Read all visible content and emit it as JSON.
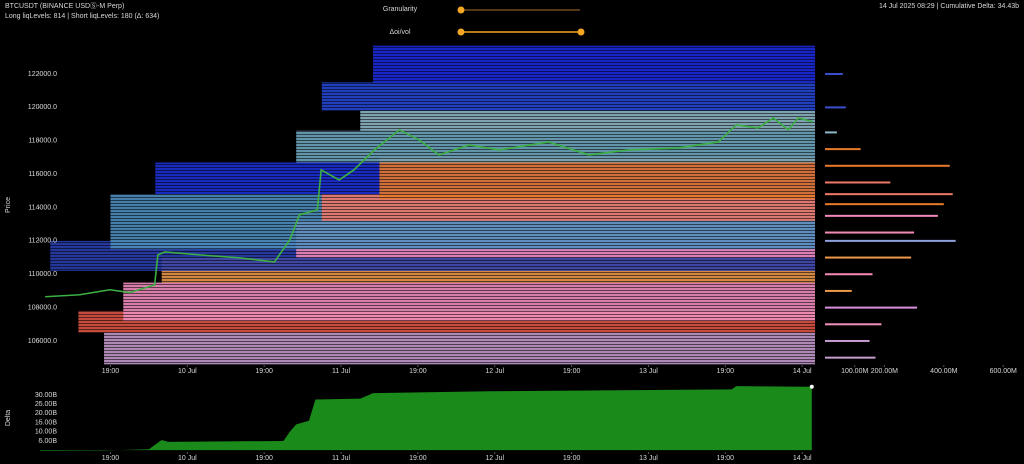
{
  "header": {
    "title": "BTCUSDT (BINANCE USDⓈ-M Perp)",
    "subtitle": "Long liqLevels: 814 | Short liqLevels: 180 (Δ: 634)",
    "status": "14 Jul 2025 08:29 | Cumulative Delta: 34.43b"
  },
  "controls": {
    "granularity": "Granularity",
    "oi_vol": "Δoi/vol"
  },
  "chart_data": [
    {
      "type": "line",
      "y_label": "Price",
      "color": "#3cb043",
      "x": [
        0.8,
        6.2,
        10.9,
        14,
        17.9,
        18.4,
        19.5,
        24.9,
        31.2,
        36.6,
        39,
        40.5,
        43.3,
        43.9,
        46.7,
        49,
        52.2,
        56.1,
        59.2,
        62.3,
        67,
        71.7,
        79.4,
        85.7,
        91.9,
        99.7,
        105.9,
        108.7,
        112.1,
        114.5,
        116.8,
        118.4,
        120.7
      ],
      "values": [
        108650,
        108770,
        109070,
        108900,
        109360,
        111160,
        111340,
        111160,
        110980,
        110740,
        112060,
        113560,
        113860,
        116250,
        115650,
        116250,
        117450,
        118650,
        118050,
        117150,
        117750,
        117450,
        117930,
        117150,
        117450,
        117570,
        117930,
        118950,
        118770,
        119370,
        118650,
        119370,
        119130
      ],
      "zones": [
        {
          "from": 104600,
          "to": 106500,
          "start": 10,
          "color": "#c79ccf"
        },
        {
          "from": 106500,
          "to": 107800,
          "start": 6,
          "color": "#e05545"
        },
        {
          "from": 107200,
          "to": 109500,
          "start": 13,
          "color": "#f490c0"
        },
        {
          "from": 109500,
          "to": 111000,
          "start": 19,
          "color": "#ee9a4a"
        },
        {
          "from": 110200,
          "to": 112000,
          "start": 1.6,
          "color": "#2b3fb0"
        },
        {
          "from": 111000,
          "to": 113200,
          "start": 40,
          "color": "#f48ab8"
        },
        {
          "from": 111500,
          "to": 114800,
          "start": 11,
          "color": "#4e8fc0"
        },
        {
          "from": 113200,
          "to": 114800,
          "start": 44,
          "color": "#f07868"
        },
        {
          "from": 114800,
          "to": 116700,
          "start": 18,
          "color": "#1d30d8"
        },
        {
          "from": 114500,
          "to": 117000,
          "start": 53,
          "color": "#e87a2a"
        },
        {
          "from": 116700,
          "to": 118600,
          "start": 40,
          "color": "#6fa9c2"
        },
        {
          "from": 118600,
          "to": 119800,
          "start": 50,
          "color": "#8fb8c8"
        },
        {
          "from": 119800,
          "to": 121500,
          "start": 44,
          "color": "#2547d6"
        },
        {
          "from": 121500,
          "to": 123700,
          "start": 52,
          "color": "#1b2be4"
        }
      ],
      "xlim": [
        0,
        121
      ],
      "ylim": [
        104560,
        123740
      ],
      "xticks": [
        {
          "value": 11,
          "label": "19:00"
        },
        {
          "value": 23,
          "label": "10 Jul"
        },
        {
          "value": 35,
          "label": "19:00"
        },
        {
          "value": 47,
          "label": "11 Jul"
        },
        {
          "value": 59,
          "label": "19:00"
        },
        {
          "value": 71,
          "label": "12 Jul"
        },
        {
          "value": 83,
          "label": "19:00"
        },
        {
          "value": 95,
          "label": "13 Jul"
        },
        {
          "value": 107,
          "label": "19:00"
        },
        {
          "value": 119,
          "label": "14 Jul"
        }
      ],
      "yticks": [
        {
          "value": 106000,
          "label": "106000.0"
        },
        {
          "value": 108000,
          "label": "108000.0"
        },
        {
          "value": 110000,
          "label": "110000.0"
        },
        {
          "value": 112000,
          "label": "112000.0"
        },
        {
          "value": 114000,
          "label": "114000.0"
        },
        {
          "value": 116000,
          "label": "116000.0"
        },
        {
          "value": 118000,
          "label": "118000.0"
        },
        {
          "value": 120000,
          "label": "120000.0"
        },
        {
          "value": 122000,
          "label": "122000.0"
        }
      ]
    },
    {
      "type": "area",
      "y_label": "Delta",
      "color": "#1a8a1a",
      "x": [
        0,
        10,
        17,
        18,
        19,
        20,
        38,
        39,
        40,
        42,
        43,
        50,
        52,
        70,
        100,
        108,
        108.7,
        120.5
      ],
      "values": [
        -0.3,
        -0.2,
        0.5,
        3,
        5.5,
        4.5,
        5,
        10,
        14,
        16,
        27.5,
        28,
        31,
        32,
        32.8,
        33,
        34.8,
        34.43
      ],
      "xlim": [
        0,
        121
      ],
      "ylim": [
        -1,
        35.4
      ],
      "xticks": [
        {
          "value": 11,
          "label": "19:00"
        },
        {
          "value": 23,
          "label": "10 Jul"
        },
        {
          "value": 35,
          "label": "19:00"
        },
        {
          "value": 47,
          "label": "11 Jul"
        },
        {
          "value": 59,
          "label": "19:00"
        },
        {
          "value": 71,
          "label": "12 Jul"
        },
        {
          "value": 83,
          "label": "19:00"
        },
        {
          "value": 95,
          "label": "13 Jul"
        },
        {
          "value": 107,
          "label": "19:00"
        },
        {
          "value": 119,
          "label": "14 Jul"
        }
      ],
      "yticks": [
        {
          "value": 5,
          "label": "5.00B"
        },
        {
          "value": 10,
          "label": "10.00B"
        },
        {
          "value": 15,
          "label": "15.00B"
        },
        {
          "value": 20,
          "label": "20.00B"
        },
        {
          "value": 25,
          "label": "25.00B"
        },
        {
          "value": 30,
          "label": "30.00B"
        }
      ]
    },
    {
      "type": "hbar",
      "prices": [
        122000,
        120000,
        118500,
        117500,
        116500,
        115500,
        114800,
        114200,
        113500,
        112500,
        112000,
        111000,
        110000,
        109000,
        108000,
        107000,
        106000,
        105000
      ],
      "values": [
        60000000,
        70000000,
        40000000,
        120000000,
        420000000,
        220000000,
        430000000,
        400000000,
        380000000,
        300000000,
        440000000,
        290000000,
        160000000,
        90000000,
        310000000,
        190000000,
        150000000,
        170000000
      ],
      "colors": [
        "#3a4fd0",
        "#3a4fd0",
        "#8fb8c8",
        "#e87a2a",
        "#e87a2a",
        "#f07868",
        "#f07868",
        "#e87a2a",
        "#f48ab8",
        "#f48ab8",
        "#8ea0e0",
        "#ee9a4a",
        "#f48ab8",
        "#ee9a4a",
        "#d98fe0",
        "#f490c0",
        "#c79ccf",
        "#c79ccf"
      ],
      "xlim": [
        0,
        670000000
      ],
      "ylim": [
        104560,
        123740
      ],
      "xticks": [
        {
          "value": 100000000,
          "label": "100.00M"
        },
        {
          "value": 200000000,
          "label": "200.00M"
        },
        {
          "value": 400000000,
          "label": "400.00M"
        },
        {
          "value": 600000000,
          "label": "600.00M"
        }
      ]
    }
  ]
}
